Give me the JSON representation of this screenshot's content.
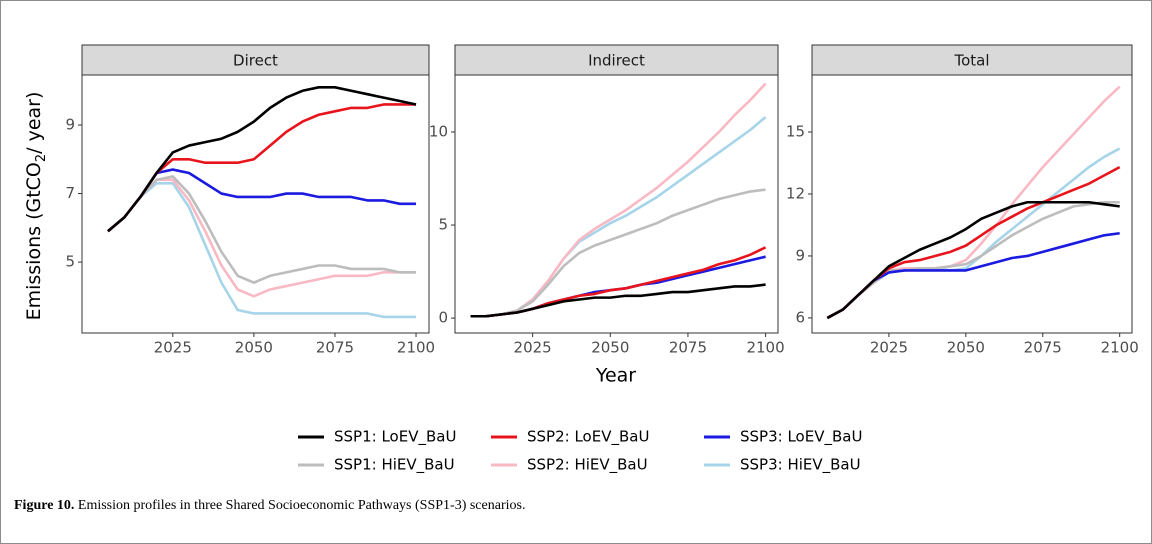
{
  "chart_data": [
    {
      "type": "line",
      "title": "Direct",
      "ylabel_parts": [
        "Emissions (GtCO",
        "2",
        "/ year)"
      ],
      "x": [
        2005,
        2010,
        2015,
        2020,
        2025,
        2030,
        2035,
        2040,
        2045,
        2050,
        2055,
        2060,
        2065,
        2070,
        2075,
        2080,
        2085,
        2090,
        2095,
        2100
      ],
      "xlim": [
        1997,
        2104
      ],
      "xticks": [
        2025,
        2050,
        2075,
        2100
      ],
      "ylim": [
        2.93,
        10.46
      ],
      "yticks": [
        5,
        7,
        9
      ],
      "grid": false,
      "series": [
        {
          "name": "SSP1: LoEV_BaU",
          "color": "#000000",
          "values": [
            5.9,
            6.3,
            6.9,
            7.6,
            8.2,
            8.4,
            8.5,
            8.6,
            8.8,
            9.1,
            9.5,
            9.8,
            10.0,
            10.1,
            10.1,
            10.0,
            9.9,
            9.8,
            9.7,
            9.6
          ]
        },
        {
          "name": "SSP2: LoEV_BaU",
          "color": "#e8141c",
          "values": [
            5.9,
            6.3,
            6.9,
            7.6,
            8.0,
            8.0,
            7.9,
            7.9,
            7.9,
            8.0,
            8.4,
            8.8,
            9.1,
            9.3,
            9.4,
            9.5,
            9.5,
            9.6,
            9.6,
            9.6
          ]
        },
        {
          "name": "SSP3: LoEV_BaU",
          "color": "#1a1ae0",
          "values": [
            5.9,
            6.3,
            6.9,
            7.6,
            7.7,
            7.6,
            7.3,
            7.0,
            6.9,
            6.9,
            6.9,
            7.0,
            7.0,
            6.9,
            6.9,
            6.9,
            6.8,
            6.8,
            6.7,
            6.7
          ]
        },
        {
          "name": "SSP1: HiEV_BaU",
          "color": "#bdbdbd",
          "values": [
            5.9,
            6.3,
            6.9,
            7.4,
            7.5,
            7.0,
            6.2,
            5.3,
            4.6,
            4.4,
            4.6,
            4.7,
            4.8,
            4.9,
            4.9,
            4.8,
            4.8,
            4.8,
            4.7,
            4.7
          ]
        },
        {
          "name": "SSP2: HiEV_BaU",
          "color": "#f8b9c5",
          "values": [
            5.9,
            6.3,
            6.9,
            7.4,
            7.4,
            6.8,
            5.9,
            4.9,
            4.2,
            4.0,
            4.2,
            4.3,
            4.4,
            4.5,
            4.6,
            4.6,
            4.6,
            4.7,
            4.7,
            4.7
          ]
        },
        {
          "name": "SSP3: HiEV_BaU",
          "color": "#a6d4e8",
          "values": [
            5.9,
            6.3,
            6.9,
            7.3,
            7.3,
            6.6,
            5.5,
            4.4,
            3.6,
            3.5,
            3.5,
            3.5,
            3.5,
            3.5,
            3.5,
            3.5,
            3.5,
            3.4,
            3.4,
            3.4
          ]
        }
      ]
    },
    {
      "type": "line",
      "title": "Indirect",
      "xlabel": "Year",
      "x": [
        2005,
        2010,
        2015,
        2020,
        2025,
        2030,
        2035,
        2040,
        2045,
        2050,
        2055,
        2060,
        2065,
        2070,
        2075,
        2080,
        2085,
        2090,
        2095,
        2100
      ],
      "xlim": [
        2000,
        2104
      ],
      "xticks": [
        2025,
        2050,
        2075,
        2100
      ],
      "ylim": [
        -0.8,
        13.06
      ],
      "yticks": [
        0,
        5,
        10
      ],
      "grid": false,
      "series": [
        {
          "color": "#000000",
          "values": [
            0.1,
            0.1,
            0.2,
            0.3,
            0.5,
            0.7,
            0.9,
            1.0,
            1.1,
            1.1,
            1.2,
            1.2,
            1.3,
            1.4,
            1.4,
            1.5,
            1.6,
            1.7,
            1.7,
            1.8
          ]
        },
        {
          "color": "#e8141c",
          "values": [
            0.1,
            0.1,
            0.2,
            0.3,
            0.5,
            0.8,
            1.0,
            1.2,
            1.3,
            1.5,
            1.6,
            1.8,
            2.0,
            2.2,
            2.4,
            2.6,
            2.9,
            3.1,
            3.4,
            3.8
          ]
        },
        {
          "color": "#1a1ae0",
          "values": [
            0.1,
            0.1,
            0.2,
            0.3,
            0.5,
            0.8,
            1.0,
            1.2,
            1.4,
            1.5,
            1.6,
            1.8,
            1.9,
            2.1,
            2.3,
            2.5,
            2.7,
            2.9,
            3.1,
            3.3
          ]
        },
        {
          "color": "#bdbdbd",
          "values": [
            0.1,
            0.1,
            0.2,
            0.4,
            0.9,
            1.8,
            2.8,
            3.5,
            3.9,
            4.2,
            4.5,
            4.8,
            5.1,
            5.5,
            5.8,
            6.1,
            6.4,
            6.6,
            6.8,
            6.9
          ]
        },
        {
          "color": "#f8b9c5",
          "values": [
            0.1,
            0.1,
            0.2,
            0.4,
            1.0,
            2.0,
            3.2,
            4.2,
            4.8,
            5.3,
            5.8,
            6.4,
            7.0,
            7.7,
            8.4,
            9.2,
            10.0,
            10.9,
            11.7,
            12.6
          ]
        },
        {
          "color": "#a6d4e8",
          "values": [
            0.1,
            0.1,
            0.2,
            0.4,
            1.0,
            2.0,
            3.2,
            4.1,
            4.6,
            5.1,
            5.5,
            6.0,
            6.5,
            7.1,
            7.7,
            8.3,
            8.9,
            9.5,
            10.1,
            10.8
          ]
        }
      ]
    },
    {
      "type": "line",
      "title": "Total",
      "x": [
        2005,
        2010,
        2015,
        2020,
        2025,
        2030,
        2035,
        2040,
        2045,
        2050,
        2055,
        2060,
        2065,
        2070,
        2075,
        2080,
        2085,
        2090,
        2095,
        2100
      ],
      "xlim": [
        2000,
        2104
      ],
      "xticks": [
        2025,
        2050,
        2075,
        2100
      ],
      "ylim": [
        5.27,
        17.76
      ],
      "yticks": [
        6,
        9,
        12,
        15
      ],
      "grid": false,
      "series": [
        {
          "color": "#000000",
          "values": [
            6.0,
            6.4,
            7.1,
            7.8,
            8.5,
            8.9,
            9.3,
            9.6,
            9.9,
            10.3,
            10.8,
            11.1,
            11.4,
            11.6,
            11.6,
            11.6,
            11.6,
            11.6,
            11.5,
            11.4
          ]
        },
        {
          "color": "#e8141c",
          "values": [
            6.0,
            6.4,
            7.1,
            7.8,
            8.4,
            8.7,
            8.8,
            9.0,
            9.2,
            9.5,
            10.0,
            10.5,
            10.9,
            11.3,
            11.6,
            11.9,
            12.2,
            12.5,
            12.9,
            13.3
          ]
        },
        {
          "color": "#1a1ae0",
          "values": [
            6.0,
            6.4,
            7.1,
            7.8,
            8.2,
            8.3,
            8.3,
            8.3,
            8.3,
            8.3,
            8.5,
            8.7,
            8.9,
            9.0,
            9.2,
            9.4,
            9.6,
            9.8,
            10.0,
            10.1
          ]
        },
        {
          "color": "#bdbdbd",
          "values": [
            6.0,
            6.4,
            7.1,
            7.7,
            8.3,
            8.3,
            8.4,
            8.4,
            8.5,
            8.6,
            9.0,
            9.5,
            10.0,
            10.4,
            10.8,
            11.1,
            11.4,
            11.5,
            11.6,
            11.6
          ]
        },
        {
          "color": "#f8b9c5",
          "values": [
            6.0,
            6.4,
            7.1,
            7.7,
            8.3,
            8.4,
            8.4,
            8.4,
            8.5,
            8.8,
            9.6,
            10.5,
            11.5,
            12.4,
            13.3,
            14.1,
            14.9,
            15.7,
            16.5,
            17.2
          ]
        },
        {
          "color": "#a6d4e8",
          "values": [
            6.0,
            6.4,
            7.1,
            7.7,
            8.2,
            8.3,
            8.4,
            8.4,
            8.3,
            8.4,
            9.0,
            9.7,
            10.3,
            10.9,
            11.5,
            12.1,
            12.7,
            13.3,
            13.8,
            14.2
          ]
        }
      ]
    }
  ],
  "caption": {
    "label": "Figure 10.",
    "text": "Emission profiles in three Shared Socioeconomic Pathways (SSP1-3) scenarios."
  }
}
